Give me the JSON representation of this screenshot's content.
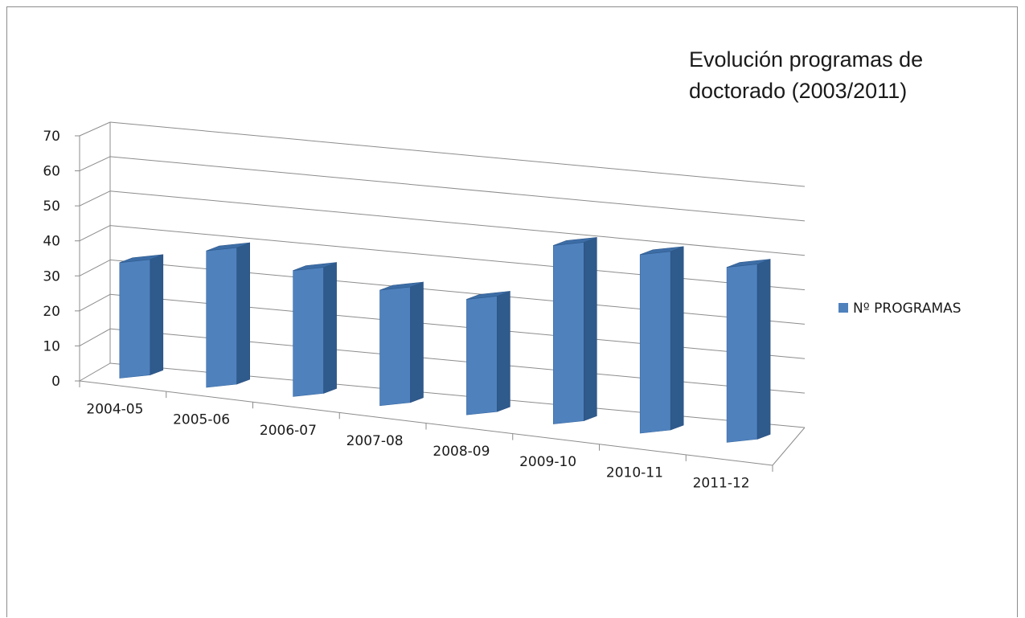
{
  "chart_data": {
    "type": "bar",
    "title": "Evolución programas de doctorado (2003/2011)",
    "title_lines": [
      "Evolución programas de",
      "doctorado (2003/2011)"
    ],
    "categories": [
      "2004-05",
      "2005-06",
      "2006-07",
      "2007-08",
      "2008-09",
      "2009-10",
      "2010-11",
      "2011-12"
    ],
    "series": [
      {
        "name": "Nº PROGRAMAS",
        "values": [
          33,
          39,
          36,
          33,
          33,
          51,
          51,
          50
        ],
        "color": "#4F81BD"
      }
    ],
    "y_ticks": [
      "0",
      "10",
      "20",
      "30",
      "40",
      "50",
      "60",
      "70"
    ],
    "ylim": [
      0,
      70
    ],
    "grid": true,
    "legend_position": "right",
    "style": "3d-column"
  }
}
